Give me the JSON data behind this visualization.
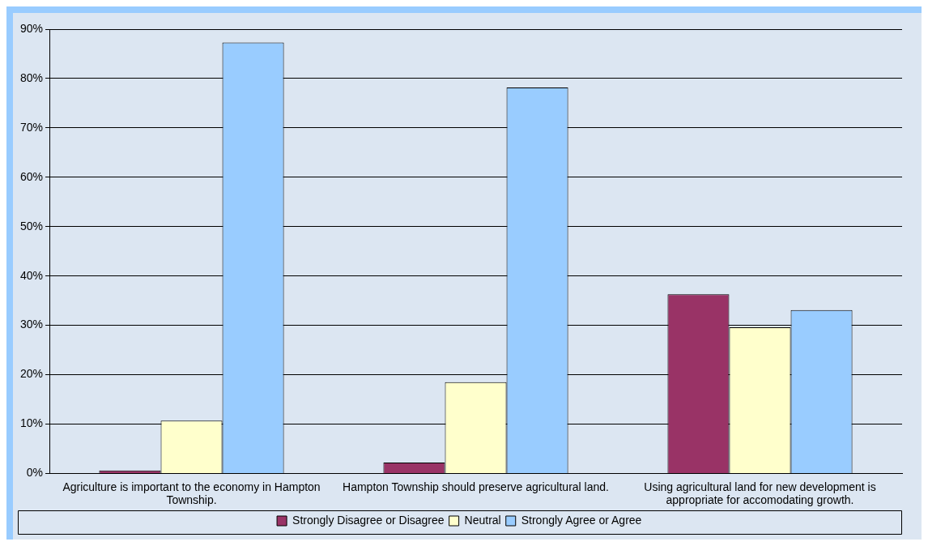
{
  "chart_data": {
    "type": "bar",
    "categories": [
      "Agriculture is important to the economy in Hampton Township.",
      "Hampton Township should preserve agricultural land.",
      "Using agricultural land for new development is appropriate for accomodating growth."
    ],
    "series": [
      {
        "name": "Strongly Disagree or Disagree",
        "color": "#993366",
        "values": [
          0.6,
          2.2,
          36.3
        ]
      },
      {
        "name": "Neutral",
        "color": "#ffffcc",
        "values": [
          10.7,
          18.5,
          29.6
        ]
      },
      {
        "name": "Strongly Agree or Agree",
        "color": "#99ccff",
        "values": [
          87.3,
          78.2,
          33.1
        ]
      }
    ],
    "ylim": [
      0,
      90
    ],
    "yticks": [
      {
        "value": 0,
        "label": "0%"
      },
      {
        "value": 10,
        "label": "10%"
      },
      {
        "value": 20,
        "label": "20%"
      },
      {
        "value": 30,
        "label": "30%"
      },
      {
        "value": 40,
        "label": "40%"
      },
      {
        "value": 50,
        "label": "50%"
      },
      {
        "value": 60,
        "label": "60%"
      },
      {
        "value": 70,
        "label": "70%"
      },
      {
        "value": 80,
        "label": "80%"
      },
      {
        "value": 90,
        "label": "90%"
      }
    ],
    "grid": "y",
    "legend": "bottom"
  }
}
